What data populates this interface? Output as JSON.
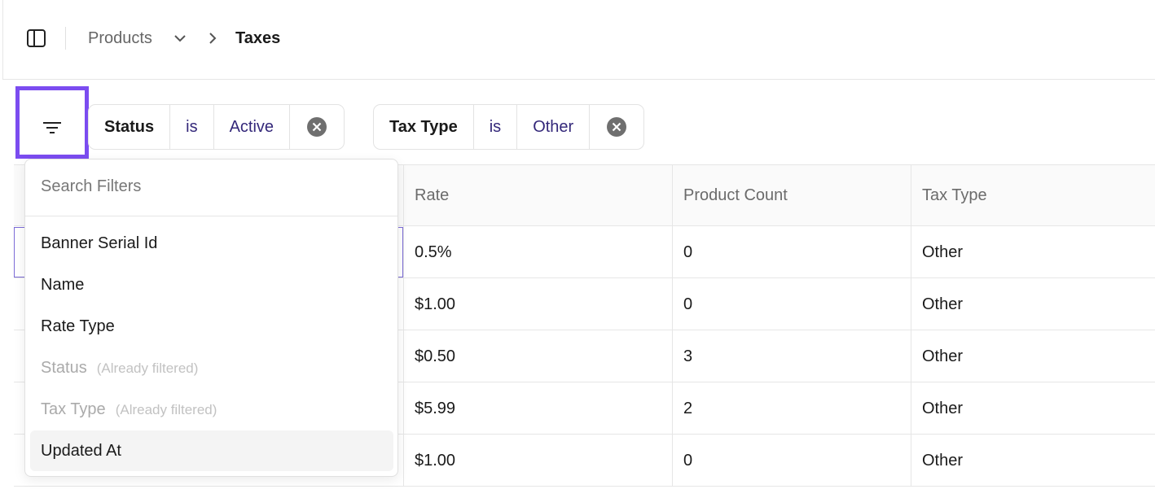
{
  "breadcrumb": {
    "parent": "Products",
    "current": "Taxes"
  },
  "filters": [
    {
      "field": "Status",
      "operator": "is",
      "value": "Active"
    },
    {
      "field": "Tax Type",
      "operator": "is",
      "value": "Other"
    }
  ],
  "filter_menu": {
    "search_placeholder": "Search Filters",
    "items": [
      {
        "label": "Banner Serial Id"
      },
      {
        "label": "Name"
      },
      {
        "label": "Rate Type"
      },
      {
        "label": "Status",
        "note": "(Already filtered)"
      },
      {
        "label": "Tax Type",
        "note": "(Already filtered)"
      },
      {
        "label": "Updated At"
      }
    ]
  },
  "table": {
    "columns": [
      "Rate",
      "Product Count",
      "Tax Type"
    ],
    "rows": [
      [
        "0.5%",
        "0",
        "Other"
      ],
      [
        "$1.00",
        "0",
        "Other"
      ],
      [
        "$0.50",
        "3",
        "Other"
      ],
      [
        "$5.99",
        "2",
        "Other"
      ],
      [
        "$1.00",
        "0",
        "Other"
      ]
    ]
  }
}
